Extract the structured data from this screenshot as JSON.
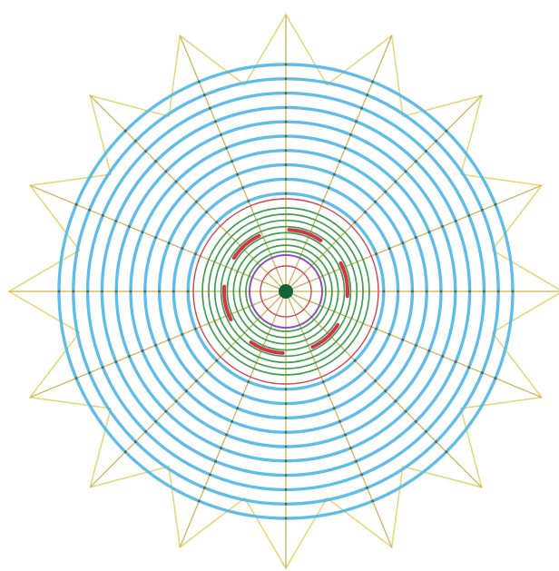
{
  "web": {
    "spoke_count": 16,
    "blue_ring_count": 10,
    "green_ring_count": 8,
    "red_ring_count": 2,
    "red_arc_count": 6,
    "colors": {
      "background": "#ffffff",
      "outline": "#e6d77a",
      "spoke": "#c9b25a",
      "blue_ring": "#4fb6e6",
      "green_ring": "#3f9e4f",
      "red_ring": "#d04a55",
      "red_arc": "#d8334a",
      "purple_ring": "#8a4fb8",
      "hub": "#12633a",
      "junction": "#444444"
    }
  }
}
